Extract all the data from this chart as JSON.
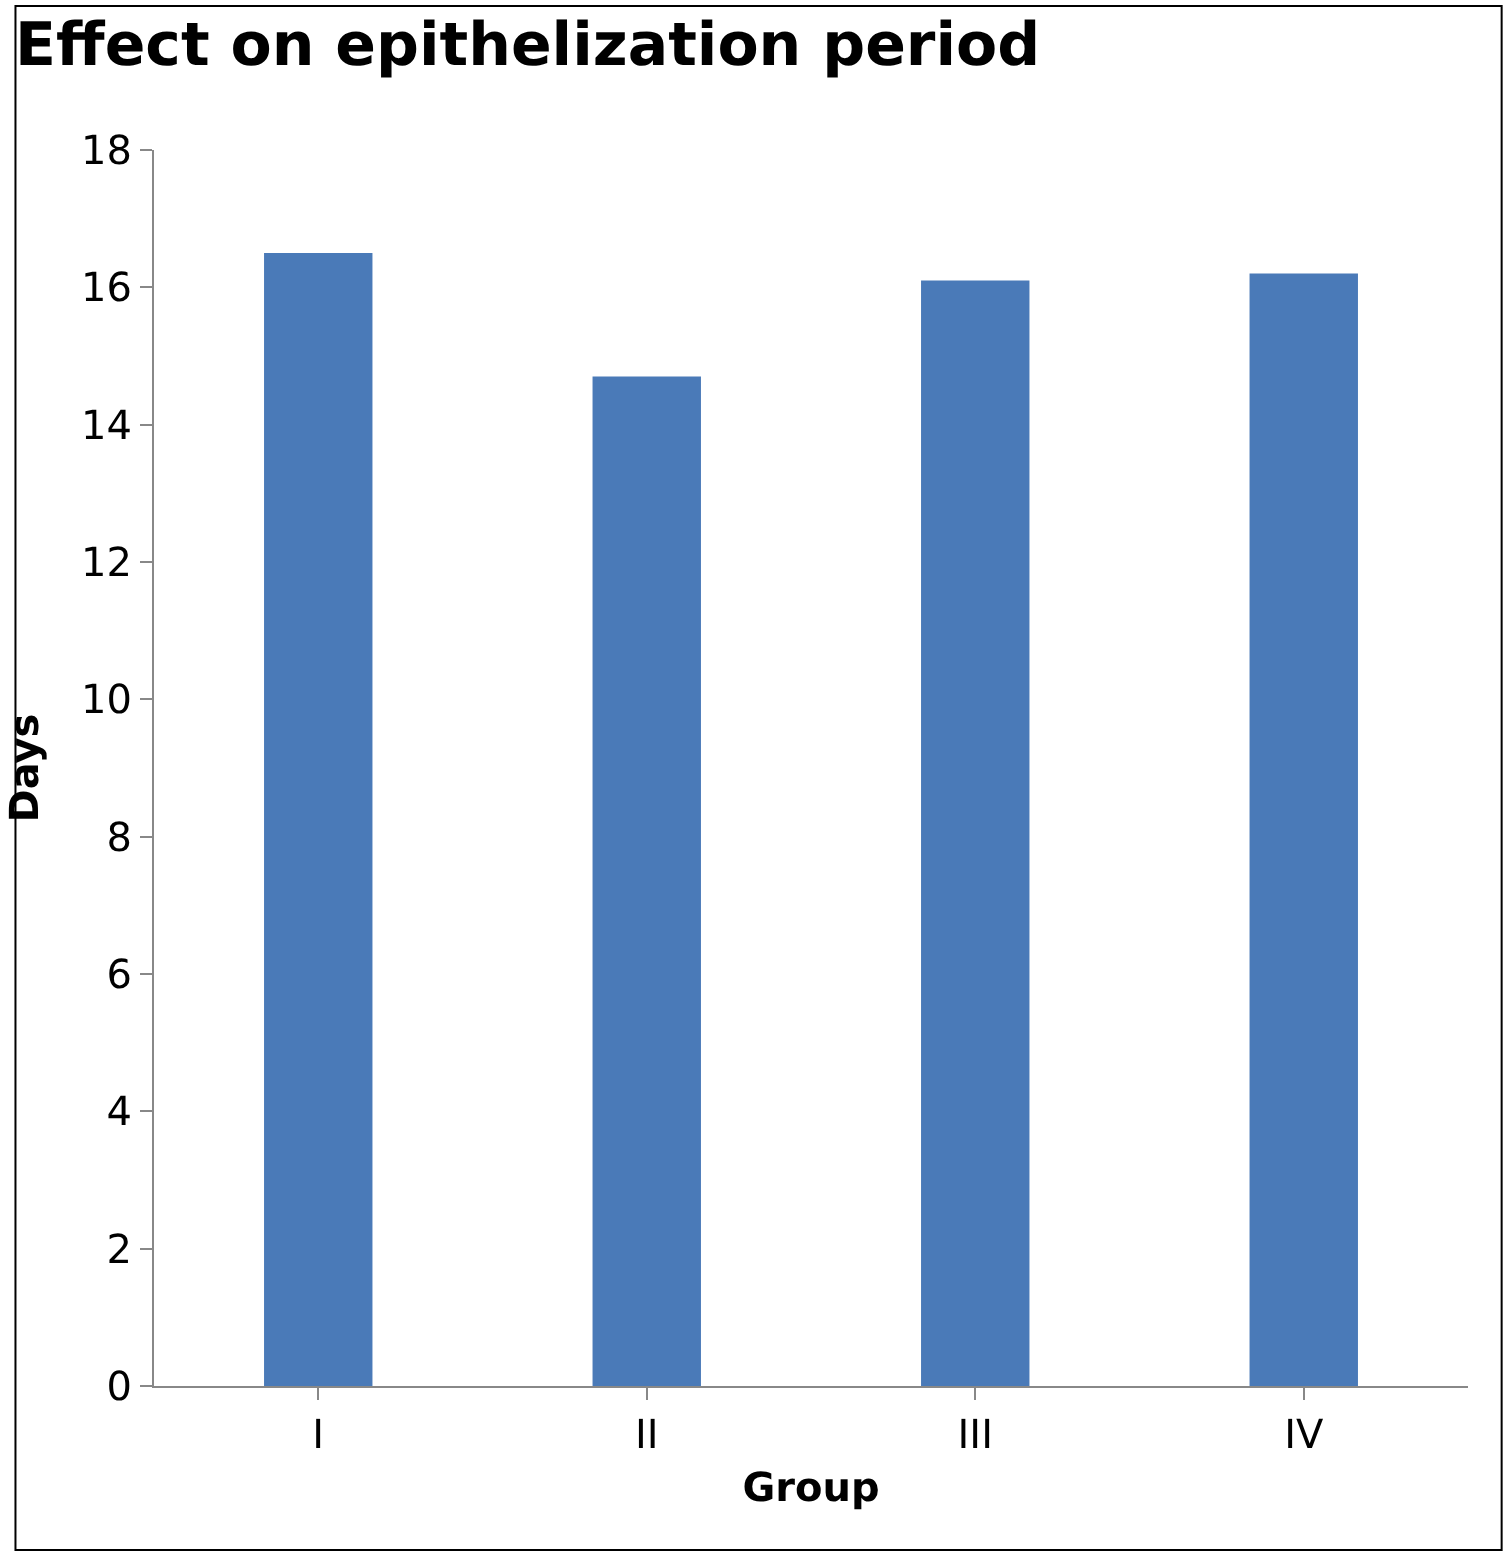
{
  "chart_data": {
    "type": "bar",
    "title": "Effect on epithelization period",
    "xlabel": "Group",
    "ylabel": "Days",
    "categories": [
      "I",
      "II",
      "III",
      "IV"
    ],
    "values": [
      16.5,
      14.7,
      16.1,
      16.2
    ],
    "color": "#4a7ab8",
    "ylim": [
      0,
      18
    ],
    "yticks": [
      0,
      2,
      4,
      6,
      8,
      10,
      12,
      14,
      16,
      18
    ]
  }
}
